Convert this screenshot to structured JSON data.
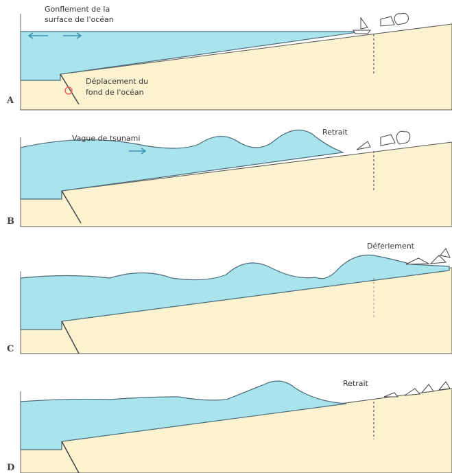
{
  "panels": [
    {
      "label": "A",
      "texts": [
        [
          "Gonflement de la",
          "surface de l'océan"
        ],
        [
          "Déplacement du",
          "fond de l'océan"
        ]
      ]
    },
    {
      "label": "B",
      "texts": [
        [
          "Vague de tsunami"
        ],
        [
          "Retrait"
        ]
      ]
    },
    {
      "label": "C",
      "texts": [
        [
          "Déferlement"
        ]
      ]
    },
    {
      "label": "D",
      "texts": [
        [
          "Retrait"
        ]
      ]
    }
  ]
}
